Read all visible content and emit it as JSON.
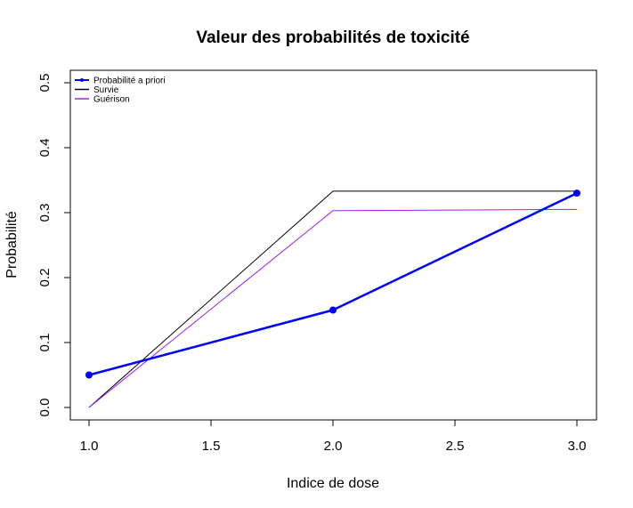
{
  "chart_data": {
    "type": "line",
    "title": "Valeur des probabilités de toxicité",
    "xlabel": "Indice de dose",
    "ylabel": "Probabilité",
    "xlim": [
      1.0,
      3.0
    ],
    "ylim": [
      0.0,
      0.5
    ],
    "x_ticks": [
      "1.0",
      "1.5",
      "2.0",
      "2.5",
      "3.0"
    ],
    "y_ticks": [
      "0.0",
      "0.1",
      "0.2",
      "0.3",
      "0.4",
      "0.5"
    ],
    "grid": false,
    "legend_position": "top-left",
    "series": [
      {
        "name": "Probabilité a priori",
        "color": "#0000ff",
        "markers": true,
        "x": [
          1,
          2,
          3
        ],
        "values": [
          0.05,
          0.15,
          0.33
        ]
      },
      {
        "name": "Survie",
        "color": "#000000",
        "markers": false,
        "x": [
          1,
          2,
          3
        ],
        "values": [
          0.0,
          0.333,
          0.333
        ]
      },
      {
        "name": "Guérison",
        "color": "#a020f0",
        "markers": false,
        "x": [
          1,
          2,
          3
        ],
        "values": [
          0.0,
          0.303,
          0.305
        ]
      }
    ]
  }
}
